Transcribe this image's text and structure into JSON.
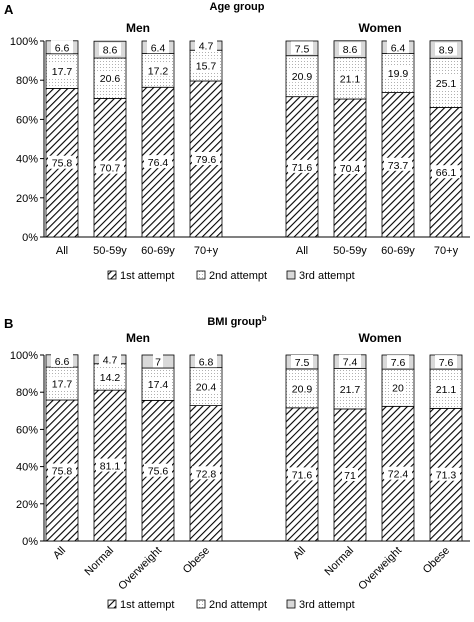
{
  "chart_data": [
    {
      "type": "bar",
      "panel_label": "A",
      "title": "Age group",
      "stacked": true,
      "ylim": [
        0,
        100
      ],
      "yticks": [
        "0%",
        "20%",
        "40%",
        "60%",
        "80%",
        "100%"
      ],
      "legend_position": "bottom",
      "grid": false,
      "groups": [
        {
          "label": "Men",
          "categories": [
            "All",
            "50-59y",
            "60-69y",
            "70+y"
          ],
          "series": [
            {
              "name": "1st attempt",
              "values": [
                75.8,
                70.7,
                76.4,
                79.6
              ]
            },
            {
              "name": "2nd attempt",
              "values": [
                17.7,
                20.6,
                17.2,
                15.7
              ]
            },
            {
              "name": "3rd attempt",
              "values": [
                6.6,
                8.6,
                6.4,
                4.7
              ]
            }
          ]
        },
        {
          "label": "Women",
          "categories": [
            "All",
            "50-59y",
            "60-69y",
            "70+y"
          ],
          "series": [
            {
              "name": "1st attempt",
              "values": [
                71.6,
                70.4,
                73.7,
                66.1
              ]
            },
            {
              "name": "2nd attempt",
              "values": [
                20.9,
                21.1,
                19.9,
                25.1
              ]
            },
            {
              "name": "3rd attempt",
              "values": [
                7.5,
                8.6,
                6.4,
                8.9
              ]
            }
          ]
        }
      ]
    },
    {
      "type": "bar",
      "panel_label": "B",
      "title": "BMI group",
      "title_superscript": "b",
      "stacked": true,
      "ylim": [
        0,
        100
      ],
      "yticks": [
        "0%",
        "20%",
        "40%",
        "60%",
        "80%",
        "100%"
      ],
      "legend_position": "bottom",
      "grid": false,
      "rotated_category_labels": true,
      "groups": [
        {
          "label": "Men",
          "categories": [
            "All",
            "Normal",
            "Overweight",
            "Obese"
          ],
          "series": [
            {
              "name": "1st attempt",
              "values": [
                75.8,
                81.1,
                75.6,
                72.8
              ]
            },
            {
              "name": "2nd attempt",
              "values": [
                17.7,
                14.2,
                17.4,
                20.4
              ]
            },
            {
              "name": "3rd attempt",
              "values": [
                6.6,
                4.7,
                7,
                6.8
              ]
            }
          ]
        },
        {
          "label": "Women",
          "categories": [
            "All",
            "Normal",
            "Overweight",
            "Obese"
          ],
          "series": [
            {
              "name": "1st attempt",
              "values": [
                71.6,
                71,
                72.4,
                71.3
              ]
            },
            {
              "name": "2nd attempt",
              "values": [
                20.9,
                21.7,
                20,
                21.1
              ]
            },
            {
              "name": "3rd attempt",
              "values": [
                7.5,
                7.4,
                7.6,
                7.6
              ]
            }
          ]
        }
      ]
    }
  ],
  "styles": {
    "series_fills": [
      "hatch-diagonal",
      "dotted",
      "solid-light-gray"
    ],
    "third_color": "#d9d9d9",
    "axis_color": "#000000"
  }
}
